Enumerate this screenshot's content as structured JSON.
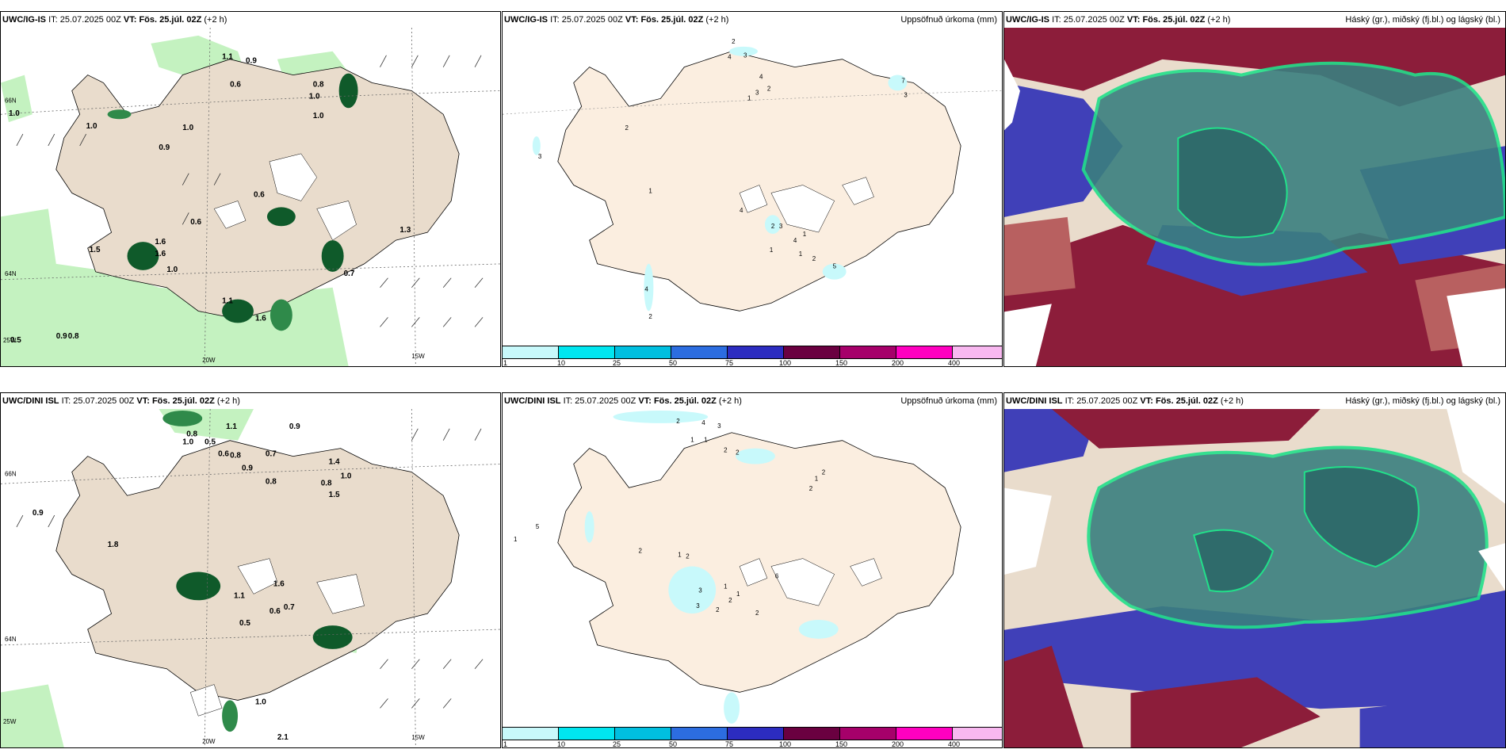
{
  "rows": [
    {
      "model": "UWC/IG-IS",
      "panels": [
        {
          "it_label": "IT:",
          "it_value": "25.07.2025 00Z",
          "vt_label": "VT:",
          "vt_value": "Fös. 25.júl. 02Z",
          "lead": "(+2 h)",
          "right": ""
        },
        {
          "it_label": "IT:",
          "it_value": "25.07.2025 00Z",
          "vt_label": "VT:",
          "vt_value": "Fös. 25.júl. 02Z",
          "lead": "(+2 h)",
          "right": "Uppsöfnuð úrkoma (mm)"
        },
        {
          "it_label": "IT:",
          "it_value": "25.07.2025 00Z",
          "vt_label": "VT:",
          "vt_value": "Fös. 25.júl. 02Z",
          "lead": "(+2 h)",
          "right": "Háský (gr.), miðský (fj.bl.) og lágský (bl.)"
        }
      ],
      "precip_values": [
        "1.1",
        "0.9",
        "0.6",
        "0.8",
        "1.0",
        "1.0",
        "1.0",
        "0.9",
        "1.0",
        "1.6",
        "1.0",
        "0.6",
        "0.6",
        "1.5",
        "1.6",
        "1.0",
        "1.1",
        "1.6",
        "0.7",
        "1.3",
        "0.5",
        "0.9",
        "0.8"
      ],
      "accum_values": [
        "2",
        "3",
        "4",
        "4",
        "2",
        "1",
        "3",
        "7",
        "3",
        "2",
        "3",
        "1",
        "4",
        "2",
        "3",
        "4",
        "1",
        "1",
        "2",
        "5",
        "4",
        "2",
        "1"
      ]
    },
    {
      "model": "UWC/DINI ISL",
      "panels": [
        {
          "it_label": "IT:",
          "it_value": "25.07.2025 00Z",
          "vt_label": "VT:",
          "vt_value": "Fös. 25.júl. 02Z",
          "lead": "(+2 h)",
          "right": ""
        },
        {
          "it_label": "IT:",
          "it_value": "25.07.2025 00Z",
          "vt_label": "VT:",
          "vt_value": "Fös. 25.júl. 02Z",
          "lead": "(+2 h)",
          "right": "Uppsöfnuð úrkoma (mm)"
        },
        {
          "it_label": "IT:",
          "it_value": "25.07.2025 00Z",
          "vt_label": "VT:",
          "vt_value": "Fös. 25.júl. 02Z",
          "lead": "(+2 h)",
          "right": "Háský (gr.), miðský (fj.bl.) og lágský (bl.)"
        }
      ],
      "precip_values": [
        "1.1",
        "0.9",
        "0.8",
        "1.0",
        "0.5",
        "0.6",
        "0.8",
        "0.9",
        "0.7",
        "0.8",
        "1.4",
        "1.0",
        "0.8",
        "1.5",
        "0.9",
        "1.8",
        "1.1",
        "1.6",
        "0.6",
        "0.7",
        "0.5",
        "1.0",
        "2.1"
      ],
      "accum_values": [
        "2",
        "4",
        "3",
        "1",
        "1",
        "2",
        "2",
        "1",
        "5",
        "2",
        "1",
        "2",
        "1",
        "2",
        "2",
        "3",
        "1",
        "3",
        "2",
        "1",
        "6",
        "2",
        "2"
      ]
    }
  ],
  "axis_labels": {
    "lat_north": "66N",
    "lat_south": "64N",
    "lon_west": "20W",
    "lon_east": "15W",
    "lon_far": "25W"
  },
  "colorbar": {
    "ticks": [
      "1",
      "10",
      "25",
      "50",
      "75",
      "100",
      "150",
      "200",
      "400"
    ],
    "colors": [
      "#c8f9fb",
      "#00e6f0",
      "#00bfe0",
      "#2c6de0",
      "#2c2cc0",
      "#6a0040",
      "#a6006a",
      "#ff00c0",
      "#f8b8f0"
    ]
  },
  "colors": {
    "land": "#e9dccc",
    "land_light": "#fbeee0",
    "precip_light": "#b7f0b4",
    "precip_dark": "#0f5a2a",
    "precip_mid": "#2f8a4a",
    "cloud_high": "#3b7f7f",
    "cloud_high_edge": "#22e08a",
    "cloud_mid": "#8c1d3a",
    "cloud_mid_light": "#b86060",
    "cloud_low": "#4040b8"
  }
}
